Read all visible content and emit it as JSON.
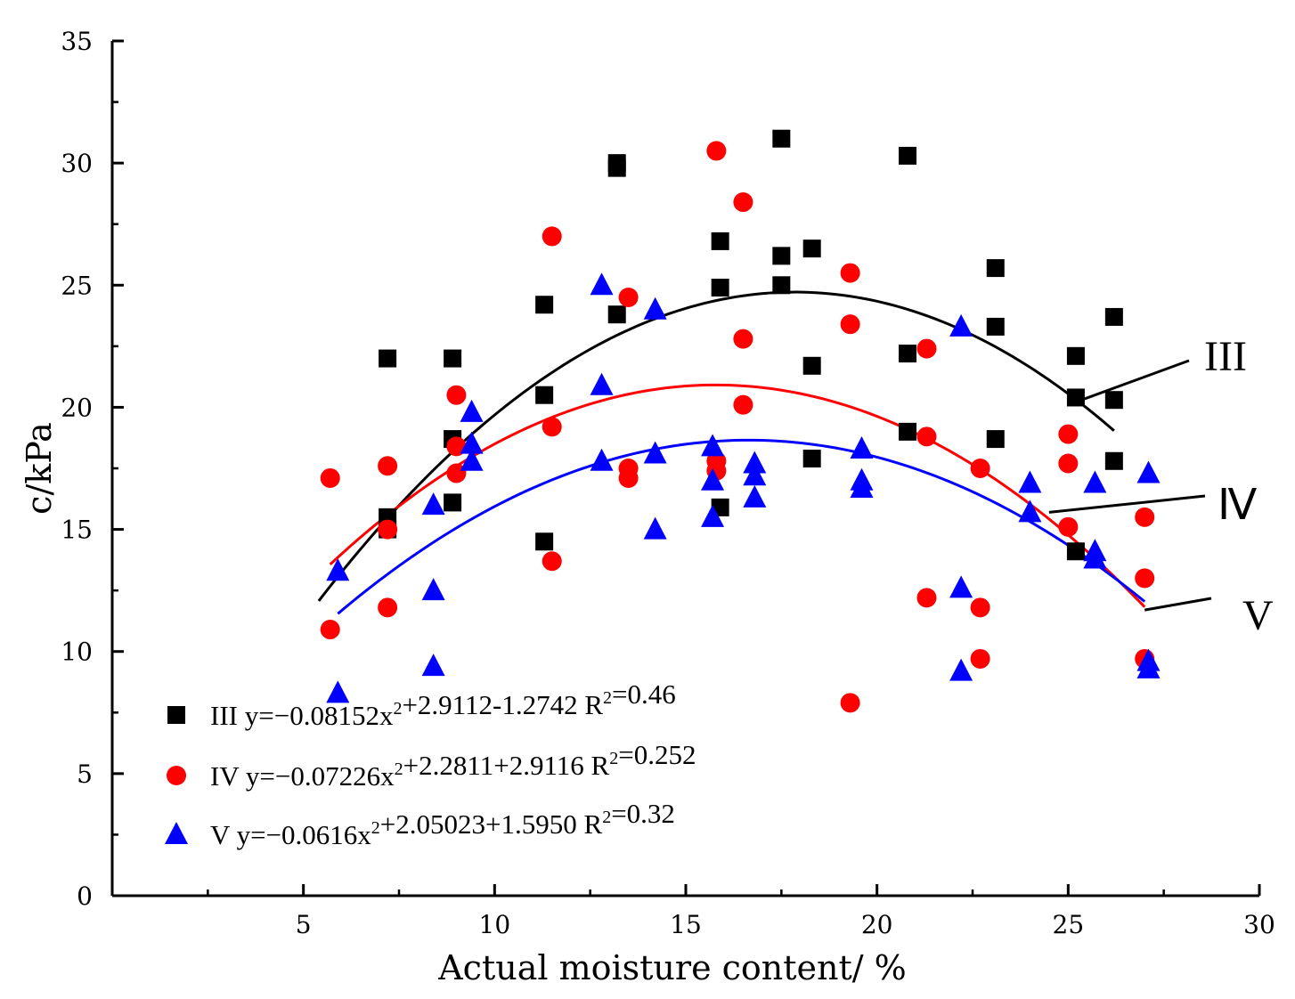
{
  "chart_data": {
    "type": "scatter",
    "xlabel": "Actual moisture content/ %",
    "ylabel": "c/kPa",
    "xlim": [
      0,
      30
    ],
    "ylim": [
      0,
      35
    ],
    "x_ticks": [
      5,
      10,
      15,
      20,
      25,
      30
    ],
    "y_ticks": [
      0,
      5,
      10,
      15,
      20,
      25,
      30,
      35
    ],
    "grid": false,
    "legend_position": "bottom-left",
    "series": [
      {
        "name": "III",
        "legend_name": "III",
        "legend_formula": "y=−0.08152x",
        "legend_formula_tail": "+2.9112-1.2742 R",
        "legend_r2": "=0.46",
        "curve_label": "III",
        "marker": "square",
        "color": "#000000",
        "fit": {
          "a": -0.08152,
          "b": 2.9112,
          "c": -1.2742,
          "x_range": [
            5.4,
            26.2
          ]
        },
        "points": [
          [
            7.2,
            22.0
          ],
          [
            7.2,
            15.5
          ],
          [
            7.2,
            15.0
          ],
          [
            8.9,
            22.0
          ],
          [
            8.9,
            18.7
          ],
          [
            8.9,
            16.1
          ],
          [
            11.3,
            24.2
          ],
          [
            11.3,
            20.5
          ],
          [
            11.3,
            14.5
          ],
          [
            13.2,
            30.0
          ],
          [
            13.2,
            29.8
          ],
          [
            13.2,
            23.8
          ],
          [
            15.9,
            26.8
          ],
          [
            15.9,
            24.9
          ],
          [
            15.9,
            15.9
          ],
          [
            17.5,
            31.0
          ],
          [
            17.5,
            26.2
          ],
          [
            17.5,
            25.0
          ],
          [
            18.3,
            26.5
          ],
          [
            18.3,
            21.7
          ],
          [
            18.3,
            17.9
          ],
          [
            20.8,
            30.3
          ],
          [
            20.8,
            22.2
          ],
          [
            20.8,
            19.0
          ],
          [
            23.1,
            25.7
          ],
          [
            23.1,
            23.3
          ],
          [
            23.1,
            18.7
          ],
          [
            25.2,
            22.1
          ],
          [
            25.2,
            20.4
          ],
          [
            25.2,
            14.1
          ],
          [
            26.2,
            23.7
          ],
          [
            26.2,
            20.3
          ],
          [
            26.2,
            17.8
          ]
        ]
      },
      {
        "name": "IV",
        "legend_name": "IV",
        "legend_formula": "y=−0.07226x",
        "legend_formula_tail": "+2.2811+2.9116 R",
        "legend_r2": "=0.252",
        "curve_label": "Ⅳ",
        "marker": "circle",
        "color": "#ff0000",
        "fit": {
          "a": -0.07226,
          "b": 2.2811,
          "c": 2.9116,
          "x_range": [
            5.7,
            27.0
          ]
        },
        "points": [
          [
            5.7,
            17.1
          ],
          [
            5.7,
            10.9
          ],
          [
            7.2,
            17.6
          ],
          [
            7.2,
            15.0
          ],
          [
            7.2,
            11.8
          ],
          [
            9.0,
            20.5
          ],
          [
            9.0,
            18.4
          ],
          [
            9.0,
            17.3
          ],
          [
            11.5,
            27.0
          ],
          [
            11.5,
            19.2
          ],
          [
            11.5,
            13.7
          ],
          [
            13.5,
            24.5
          ],
          [
            13.5,
            17.5
          ],
          [
            13.5,
            17.1
          ],
          [
            15.8,
            30.5
          ],
          [
            15.8,
            17.8
          ],
          [
            15.8,
            17.4
          ],
          [
            16.5,
            28.4
          ],
          [
            16.5,
            22.8
          ],
          [
            16.5,
            20.1
          ],
          [
            19.3,
            25.5
          ],
          [
            19.3,
            23.4
          ],
          [
            19.3,
            7.9
          ],
          [
            21.3,
            22.4
          ],
          [
            21.3,
            18.8
          ],
          [
            21.3,
            12.2
          ],
          [
            22.7,
            17.5
          ],
          [
            22.7,
            11.8
          ],
          [
            22.7,
            9.7
          ],
          [
            25.0,
            18.9
          ],
          [
            25.0,
            17.7
          ],
          [
            25.0,
            15.1
          ],
          [
            27.0,
            15.5
          ],
          [
            27.0,
            13.0
          ],
          [
            27.0,
            9.7
          ]
        ]
      },
      {
        "name": "V",
        "legend_name": "V",
        "legend_formula": "y=−0.0616x",
        "legend_formula_tail": "+2.05023+1.5950 R",
        "legend_r2": "=0.32",
        "curve_label": "V",
        "marker": "triangle",
        "color": "#0000ff",
        "fit": {
          "a": -0.0616,
          "b": 2.05023,
          "c": 1.595,
          "x_range": [
            5.9,
            27.0
          ]
        },
        "points": [
          [
            5.9,
            13.3
          ],
          [
            5.9,
            8.3
          ],
          [
            8.4,
            16.0
          ],
          [
            8.4,
            12.5
          ],
          [
            8.4,
            9.4
          ],
          [
            9.4,
            19.8
          ],
          [
            9.4,
            18.5
          ],
          [
            9.4,
            17.8
          ],
          [
            12.8,
            25.0
          ],
          [
            12.8,
            20.9
          ],
          [
            12.8,
            17.8
          ],
          [
            14.2,
            24.0
          ],
          [
            14.2,
            18.1
          ],
          [
            14.2,
            15.0
          ],
          [
            15.7,
            18.4
          ],
          [
            15.7,
            17.0
          ],
          [
            15.7,
            15.5
          ],
          [
            16.8,
            17.7
          ],
          [
            16.8,
            17.2
          ],
          [
            16.8,
            16.3
          ],
          [
            19.6,
            18.3
          ],
          [
            19.6,
            17.0
          ],
          [
            19.6,
            16.7
          ],
          [
            22.2,
            23.3
          ],
          [
            22.2,
            12.6
          ],
          [
            22.2,
            9.2
          ],
          [
            24.0,
            16.9
          ],
          [
            24.0,
            15.7
          ],
          [
            25.7,
            16.9
          ],
          [
            25.7,
            14.1
          ],
          [
            25.7,
            13.8
          ],
          [
            27.1,
            17.3
          ],
          [
            27.1,
            9.6
          ],
          [
            27.1,
            9.3
          ]
        ]
      }
    ]
  }
}
